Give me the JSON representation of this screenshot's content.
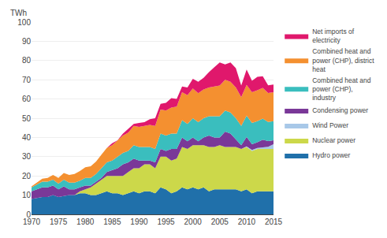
{
  "chart_data": {
    "type": "area",
    "stacked": true,
    "ylabel": "TWh",
    "x": [
      1970,
      1971,
      1972,
      1973,
      1974,
      1975,
      1976,
      1977,
      1978,
      1979,
      1980,
      1981,
      1982,
      1983,
      1984,
      1985,
      1986,
      1987,
      1988,
      1989,
      1990,
      1991,
      1992,
      1993,
      1994,
      1995,
      1996,
      1997,
      1998,
      1999,
      2000,
      2001,
      2002,
      2003,
      2004,
      2005,
      2006,
      2007,
      2008,
      2009,
      2010,
      2011,
      2012,
      2013,
      2014,
      2015
    ],
    "series": [
      {
        "name": "Hydro power",
        "color": "#2070aa",
        "values": [
          8,
          8.5,
          9,
          9,
          10,
          9,
          9.5,
          10,
          10,
          11,
          11,
          10,
          10,
          11,
          12,
          11,
          11,
          10,
          11,
          12,
          11,
          12,
          12,
          11,
          14,
          13,
          11,
          12,
          14,
          13,
          14,
          13,
          14,
          12,
          13,
          13,
          13,
          13,
          13,
          12,
          13,
          11,
          12,
          12,
          12,
          12
        ]
      },
      {
        "name": "Nuclear power",
        "color": "#ccd84a",
        "values": [
          0,
          0,
          0,
          0,
          0,
          0,
          0,
          0,
          0,
          1,
          2,
          4,
          6,
          7,
          8,
          9,
          9,
          10,
          11,
          12,
          13,
          14,
          14,
          13,
          16,
          17,
          17,
          17,
          21,
          21,
          22,
          23,
          22,
          23,
          22,
          23,
          22,
          22,
          22,
          22,
          22,
          22,
          22,
          22,
          22,
          22
        ]
      },
      {
        "name": "Wind Power",
        "color": "#a8c8e8",
        "values": [
          0,
          0,
          0,
          0,
          0,
          0,
          0,
          0,
          0,
          0,
          0,
          0,
          0,
          0,
          0,
          0,
          0,
          0,
          0,
          0,
          0,
          0,
          0,
          0,
          0,
          0,
          0,
          0,
          0,
          0,
          0,
          0,
          0,
          0,
          0,
          0,
          0,
          0,
          0,
          0,
          0.3,
          0.5,
          0.5,
          0.8,
          1.1,
          2.5
        ]
      },
      {
        "name": "Condensing power",
        "color": "#7a3898",
        "values": [
          4,
          4.5,
          5,
          5,
          5,
          4,
          5,
          3,
          3,
          2,
          2,
          1,
          1,
          1,
          2,
          3,
          4,
          6,
          5,
          5,
          4,
          2,
          2,
          3,
          4,
          3,
          6,
          5,
          5,
          4,
          4,
          2,
          4,
          6,
          5,
          4,
          8,
          7,
          4,
          2,
          5,
          3,
          3,
          4,
          3,
          2
        ]
      },
      {
        "name": "Combined heat and\npower (CHP),\nindustry",
        "color": "#3abebe",
        "values": [
          2,
          2.5,
          3,
          3,
          3,
          3,
          3.5,
          3.5,
          3.5,
          3.5,
          4,
          4,
          4,
          5,
          5,
          5,
          6,
          6,
          6,
          7,
          7,
          7,
          7,
          7,
          8,
          8,
          8,
          8,
          9,
          9,
          10,
          10,
          10,
          10,
          11,
          11,
          11,
          11,
          11,
          10,
          11,
          11,
          11,
          11,
          10,
          10
        ]
      },
      {
        "name": "Combined heat and\npower (CHP), district\nheat",
        "color": "#f49030",
        "values": [
          0.5,
          1,
          1.5,
          2,
          2.5,
          3,
          3.5,
          4,
          4.5,
          5,
          5.5,
          6,
          6.5,
          7,
          7.5,
          8,
          8.5,
          9,
          9.5,
          10,
          10.5,
          11,
          11.5,
          12,
          12.5,
          13,
          13.5,
          14,
          14.5,
          15,
          15.5,
          15,
          15,
          15,
          15.5,
          16,
          16,
          16,
          16,
          15,
          16,
          16,
          16,
          16,
          15,
          15
        ]
      },
      {
        "name": "Net imports of\nelectricity",
        "color": "#e0186c",
        "values": [
          0,
          0,
          0,
          0,
          0,
          0,
          0,
          0,
          0,
          0,
          0,
          0,
          0,
          0,
          0,
          1,
          0,
          1,
          2,
          1,
          2,
          2,
          3,
          4,
          3,
          4,
          5,
          4,
          3,
          4,
          5,
          6,
          6,
          8,
          10,
          12,
          8,
          10,
          10,
          6,
          8,
          6,
          7,
          6,
          4,
          4
        ]
      }
    ],
    "xlim": [
      1970,
      2015
    ],
    "xticks": [
      1970,
      1975,
      1980,
      1985,
      1990,
      1995,
      2000,
      2005,
      2010,
      2015
    ],
    "ylim": [
      0,
      100
    ],
    "yticks": [
      0,
      10,
      20,
      30,
      40,
      50,
      60,
      70,
      80,
      90,
      100
    ],
    "grid": true,
    "legend": "right"
  }
}
